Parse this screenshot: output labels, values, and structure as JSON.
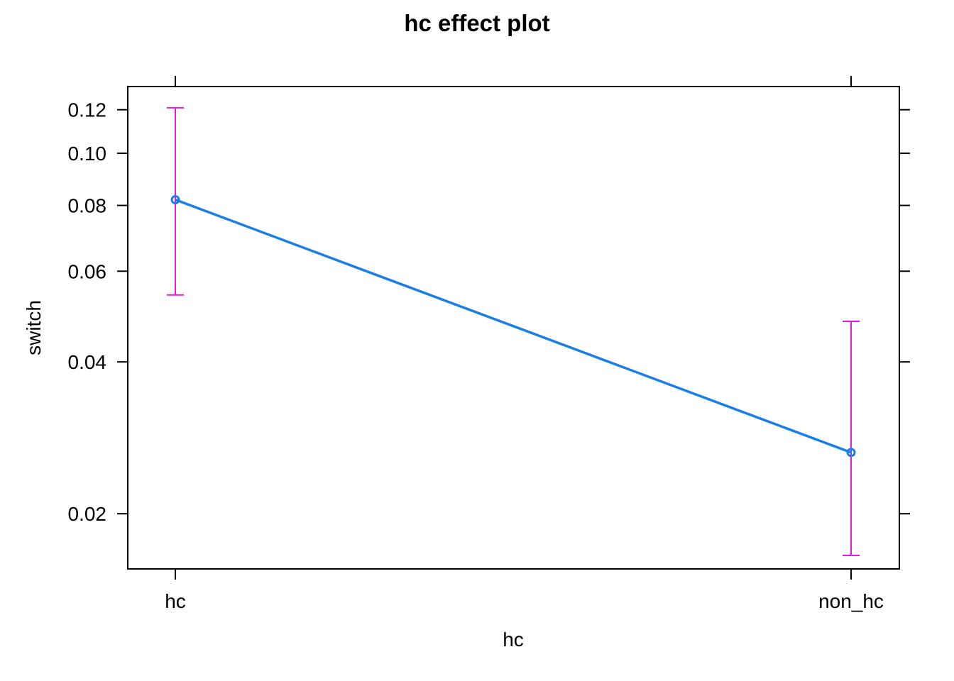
{
  "chart_data": {
    "type": "line",
    "title": "hc effect plot",
    "xlabel": "hc",
    "ylabel": "switch",
    "scale": "logit",
    "categories": [
      "hc",
      "non_hc"
    ],
    "series": [
      {
        "values": [
          0.082,
          0.0265
        ],
        "lower": [
          0.054,
          0.0165
        ],
        "upper": [
          0.121,
          0.048
        ]
      }
    ],
    "y_ticks": [
      0.02,
      0.04,
      0.06,
      0.08,
      0.1,
      0.12
    ],
    "y_tick_labels": [
      "0.02",
      "0.04",
      "0.06",
      "0.08",
      "0.10",
      "0.12"
    ],
    "ylim": [
      0.0155,
      0.132
    ],
    "grid": false,
    "colors": {
      "line": "#1A7EE8",
      "ci": "#E819E8",
      "axis": "#000000"
    }
  }
}
